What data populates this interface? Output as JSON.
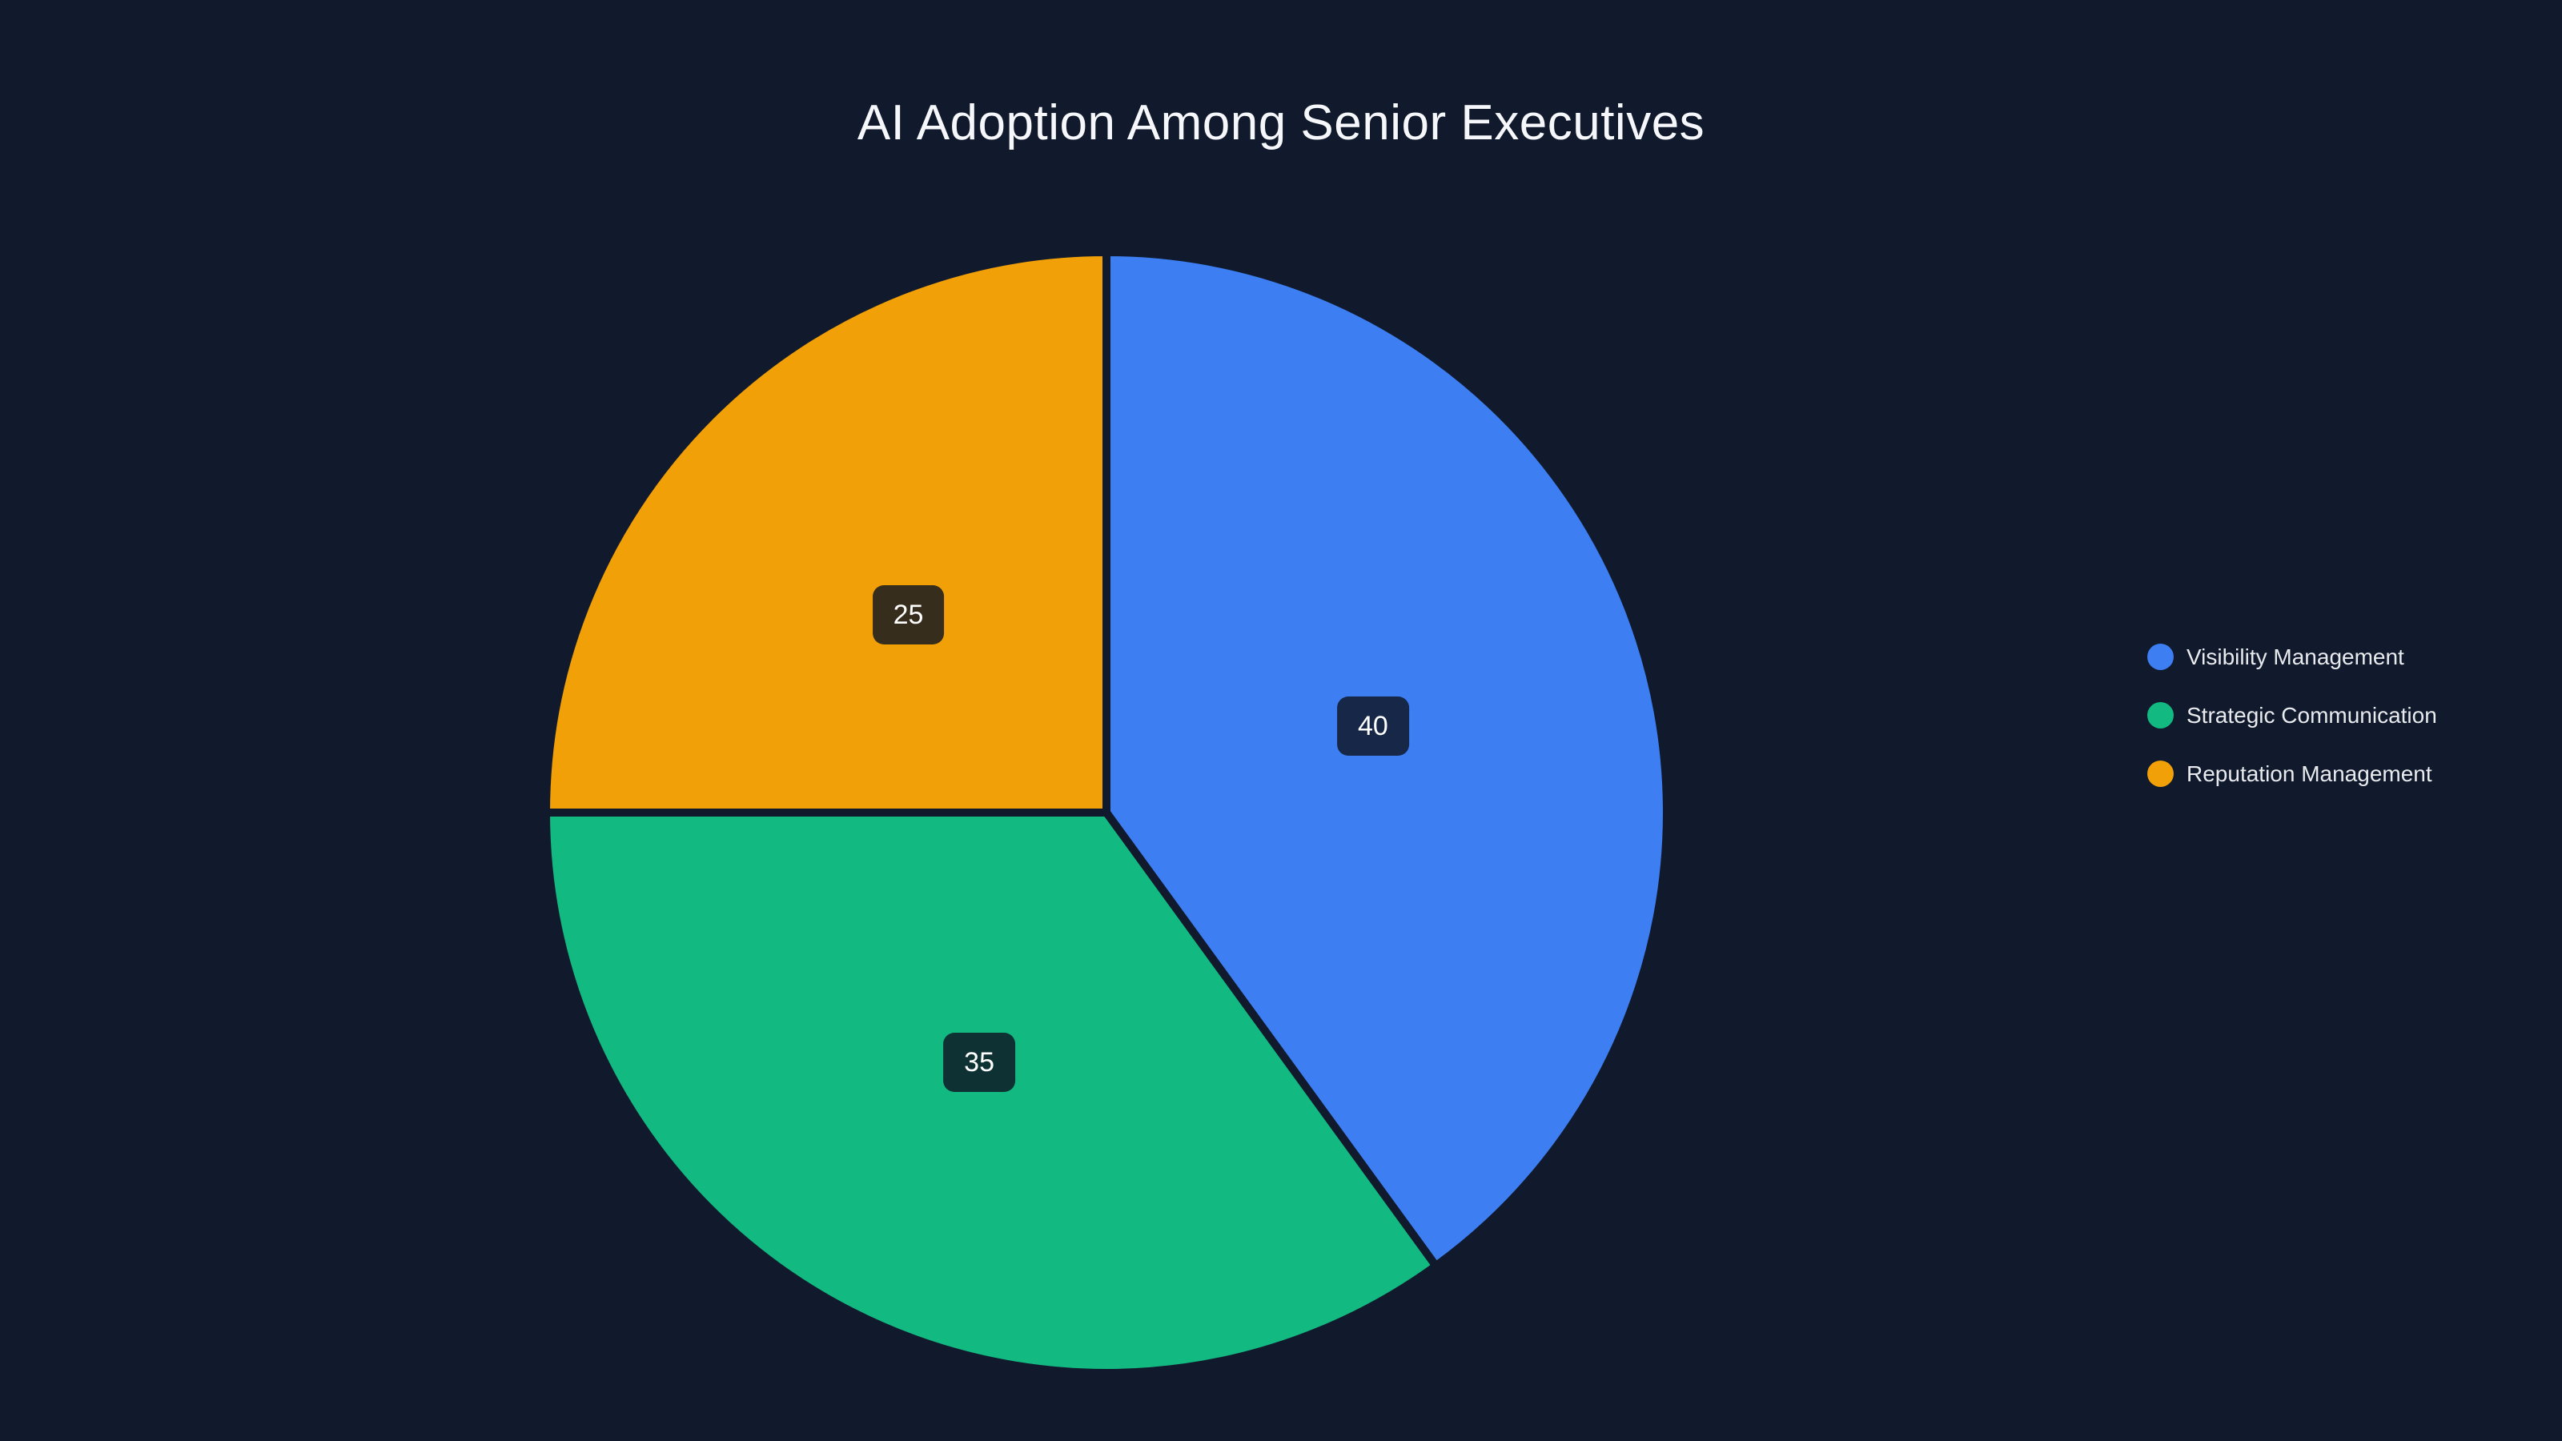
{
  "colors": {
    "background": "#101a2c",
    "label_box": "rgba(13,20,34,0.82)",
    "title_text": "#f5f7fa",
    "legend_text": "#e8eaed"
  },
  "chart_data": {
    "type": "pie",
    "title": "AI Adoption Among Senior Executives",
    "categories": [
      "Visibility Management",
      "Strategic Communication",
      "Reputation Management"
    ],
    "values": [
      40,
      35,
      25
    ],
    "labels_shown": [
      "40",
      "35",
      "25"
    ],
    "slice_colors": [
      "#3d7ff3",
      "#12b981",
      "#f2a008"
    ],
    "start_angle_deg": -90,
    "direction": "clockwise",
    "legend_position": "right",
    "label_radius_fraction": 0.5,
    "total": 100
  }
}
